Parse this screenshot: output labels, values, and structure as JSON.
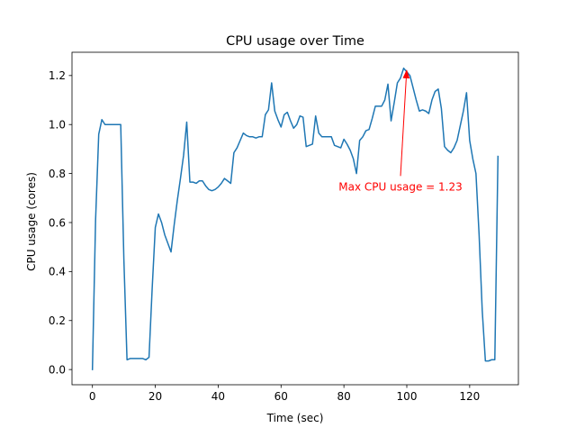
{
  "chart_data": {
    "type": "line",
    "title": "CPU usage over Time",
    "xlabel": "Time (sec)",
    "ylabel": "CPU usage (cores)",
    "xlim": [
      -6.5,
      135.5
    ],
    "ylim": [
      -0.062,
      1.295
    ],
    "xticks": [
      0,
      20,
      40,
      60,
      80,
      100,
      120
    ],
    "yticks": [
      0.0,
      0.2,
      0.4,
      0.6,
      0.8,
      1.0,
      1.2
    ],
    "xtick_labels": [
      "0",
      "20",
      "40",
      "60",
      "80",
      "100",
      "120"
    ],
    "ytick_labels": [
      "0.0",
      "0.2",
      "0.4",
      "0.6",
      "0.8",
      "1.0",
      "1.2"
    ],
    "grid": false,
    "series": [
      {
        "color": "#1f77b4",
        "x": [
          0,
          1,
          2,
          3,
          4,
          5,
          6,
          7,
          8,
          9,
          10,
          11,
          12,
          13,
          14,
          15,
          16,
          17,
          18,
          19,
          20,
          21,
          22,
          23,
          24,
          25,
          26,
          27,
          28,
          29,
          30,
          31,
          32,
          33,
          34,
          35,
          36,
          37,
          38,
          39,
          40,
          41,
          42,
          43,
          44,
          45,
          46,
          47,
          48,
          49,
          50,
          51,
          52,
          53,
          54,
          55,
          56,
          57,
          58,
          59,
          60,
          61,
          62,
          63,
          64,
          65,
          66,
          67,
          68,
          69,
          70,
          71,
          72,
          73,
          74,
          75,
          76,
          77,
          78,
          79,
          80,
          81,
          82,
          83,
          84,
          85,
          86,
          87,
          88,
          89,
          90,
          91,
          92,
          93,
          94,
          95,
          96,
          97,
          98,
          99,
          100,
          101,
          102,
          103,
          104,
          105,
          106,
          107,
          108,
          109,
          110,
          111,
          112,
          113,
          114,
          115,
          116,
          117,
          118,
          119,
          120,
          121,
          122,
          123,
          124,
          125,
          126,
          127,
          128,
          129
        ],
        "y": [
          0.0,
          0.61,
          0.96,
          1.02,
          1.0,
          1.0,
          1.0,
          1.0,
          1.0,
          1.0,
          0.45,
          0.04,
          0.045,
          0.045,
          0.045,
          0.045,
          0.045,
          0.04,
          0.05,
          0.33,
          0.58,
          0.635,
          0.6,
          0.55,
          0.515,
          0.48,
          0.59,
          0.69,
          0.78,
          0.875,
          1.01,
          0.765,
          0.765,
          0.76,
          0.77,
          0.77,
          0.75,
          0.735,
          0.73,
          0.735,
          0.745,
          0.76,
          0.78,
          0.77,
          0.76,
          0.885,
          0.905,
          0.935,
          0.965,
          0.955,
          0.95,
          0.95,
          0.945,
          0.95,
          0.95,
          1.04,
          1.06,
          1.17,
          1.055,
          1.02,
          0.99,
          1.04,
          1.05,
          1.015,
          0.985,
          1.0,
          1.035,
          1.03,
          0.91,
          0.915,
          0.92,
          1.035,
          0.965,
          0.95,
          0.95,
          0.95,
          0.95,
          0.915,
          0.91,
          0.905,
          0.94,
          0.92,
          0.895,
          0.86,
          0.8,
          0.935,
          0.95,
          0.975,
          0.98,
          1.025,
          1.075,
          1.075,
          1.075,
          1.1,
          1.165,
          1.015,
          1.09,
          1.17,
          1.19,
          1.23,
          1.215,
          1.2,
          1.15,
          1.1,
          1.055,
          1.06,
          1.055,
          1.045,
          1.1,
          1.135,
          1.145,
          1.065,
          0.91,
          0.895,
          0.885,
          0.905,
          0.935,
          0.995,
          1.055,
          1.13,
          0.935,
          0.86,
          0.8,
          0.55,
          0.24,
          0.035,
          0.035,
          0.04,
          0.04,
          0.87
        ]
      }
    ],
    "annotation": {
      "text": "Max CPU usage = 1.23",
      "color": "#ff0000",
      "xy": [
        100,
        1.23
      ],
      "xytext": [
        98,
        0.79
      ]
    }
  }
}
